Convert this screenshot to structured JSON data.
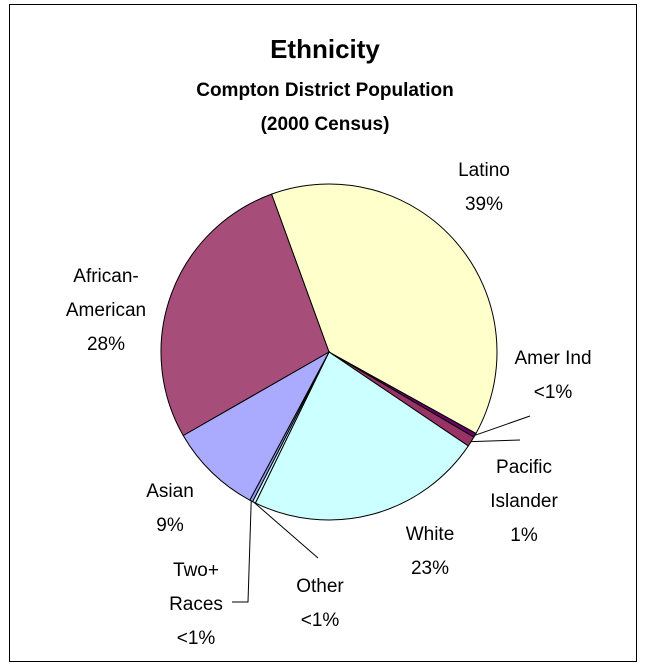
{
  "chart_data": {
    "type": "pie",
    "title": "Ethnicity",
    "subtitle_line1": "Compton District Population",
    "subtitle_line2": "(2000 Census)",
    "slices": [
      {
        "name": "Latino",
        "value": 39,
        "value_label": "39%",
        "color": "#FFFFCC"
      },
      {
        "name": "Amer Ind",
        "value": 0.4,
        "value_label": "<1%",
        "color": "#660066"
      },
      {
        "name": "Pacific Islander",
        "value": 1,
        "value_label": "1%",
        "color": "#993366"
      },
      {
        "name": "White",
        "value": 23,
        "value_label": "23%",
        "color": "#CCFFFF"
      },
      {
        "name": "Other",
        "value": 0.3,
        "value_label": "<1%",
        "color": "#CCFFFF"
      },
      {
        "name": "Two+ Races",
        "value": 0.3,
        "value_label": "<1%",
        "color": "#9999FF"
      },
      {
        "name": "Asian",
        "value": 9,
        "value_label": "9%",
        "color": "#AAAAFF"
      },
      {
        "name": "African-American",
        "value": 28,
        "value_label": "28%",
        "color": "#A64D79"
      }
    ],
    "labels": {
      "latino": [
        "Latino",
        "39%"
      ],
      "amerind": [
        "Amer Ind",
        "<1%"
      ],
      "pacific": [
        "Pacific",
        "Islander",
        "1%"
      ],
      "white": [
        "White",
        "23%"
      ],
      "other": [
        "Other",
        "<1%"
      ],
      "tworaces": [
        "Two+",
        "Races",
        "<1%"
      ],
      "asian": [
        "Asian",
        "9%"
      ],
      "african": [
        "African-",
        "American",
        "28%"
      ]
    },
    "legend": "none"
  }
}
